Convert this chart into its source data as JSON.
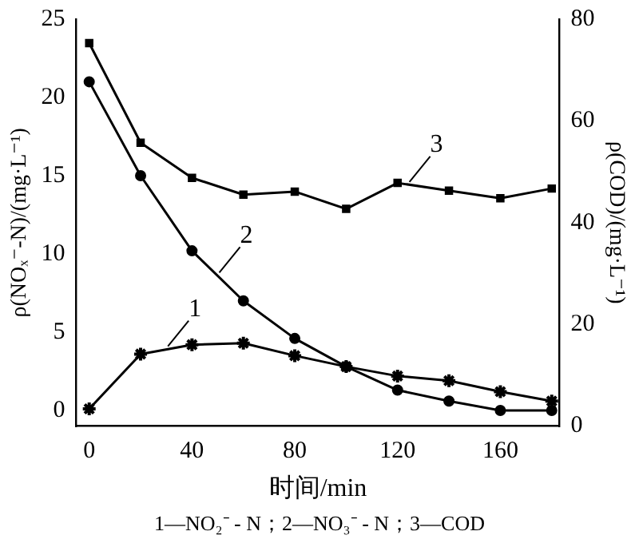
{
  "chart_data": {
    "type": "line",
    "xlabel": "时间/min",
    "ylabel": "ρ(NOₓ⁻-N)/(mg·L⁻¹)",
    "y2label": "ρ(COD)/(mg·L⁻¹)",
    "x": [
      0,
      20,
      40,
      60,
      80,
      100,
      120,
      140,
      160,
      180
    ],
    "series": [
      {
        "color": "#000000",
        "marker": "cross",
        "values": [
          0.1,
          3.6,
          4.2,
          4.3,
          3.5,
          2.8,
          2.2,
          1.9,
          1.2,
          0.6
        ]
      },
      {
        "color": "#000000",
        "marker": "circle",
        "values": [
          21,
          15,
          10.2,
          7,
          4.6,
          2.8,
          1.3,
          0.6,
          0,
          0
        ]
      },
      {
        "color": "#000000",
        "marker": "square",
        "axis": "y2",
        "values": [
          75.3,
          55.7,
          48.8,
          45.5,
          46.1,
          42.7,
          47.8,
          46.3,
          44.8,
          46.7
        ]
      }
    ],
    "xlim": [
      -5,
      183
    ],
    "xticks": [
      0,
      40,
      80,
      120,
      160
    ],
    "ylim": [
      -1,
      25
    ],
    "yticks": [
      0,
      5,
      10,
      15,
      20,
      25
    ],
    "y2lim": [
      0,
      80
    ],
    "y2ticks": [
      0,
      20,
      40,
      60,
      80
    ],
    "grid": false,
    "legend": false,
    "line_style": "solid",
    "annotations": [
      {
        "text": "1",
        "x": 30,
        "y": 3.9
      },
      {
        "text": "2",
        "x": 50,
        "y": 8.6
      },
      {
        "text": "3",
        "x": 124,
        "y": 14.4
      },
      "1—NO₂⁻ - N；2—NO₃⁻ - N；3—COD"
    ]
  }
}
